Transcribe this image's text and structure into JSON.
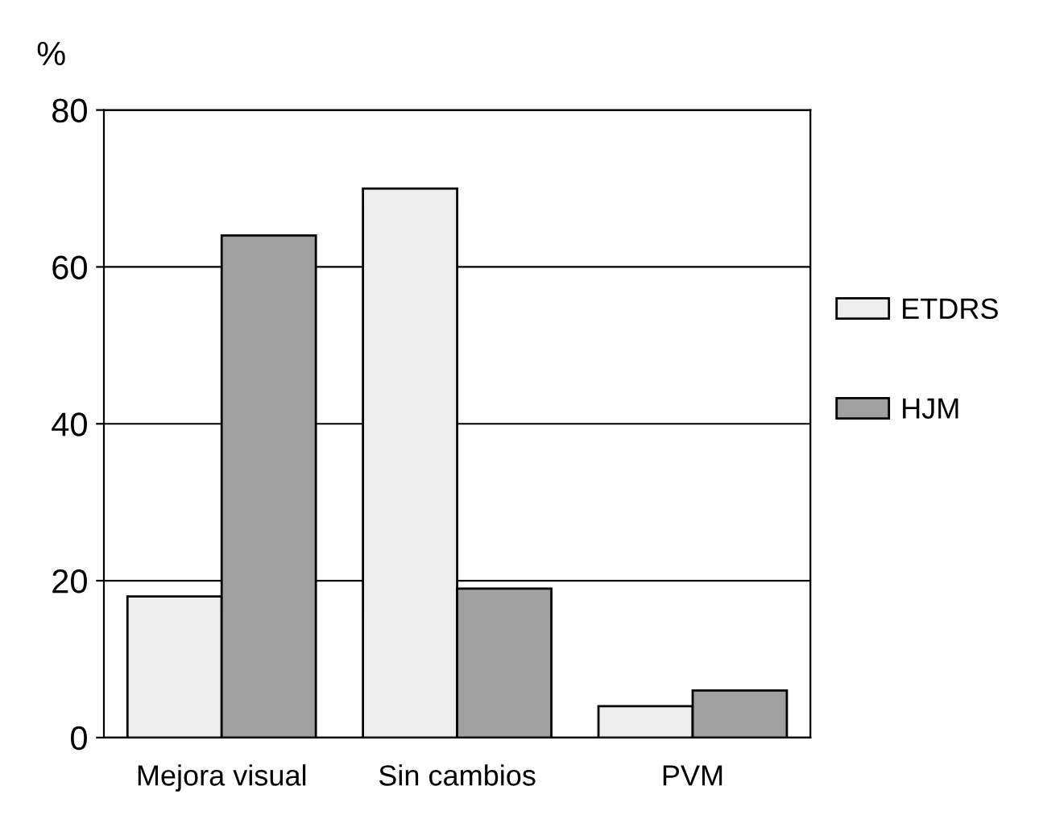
{
  "chart_data": {
    "type": "bar",
    "ylabel": "%",
    "categories": [
      "Mejora visual",
      "Sin cambios",
      "PVM"
    ],
    "series": [
      {
        "name": "ETDRS",
        "color": "#eeeeee",
        "values": [
          18,
          70,
          4
        ]
      },
      {
        "name": "HJM",
        "color": "#a0a0a0",
        "values": [
          64,
          19,
          6
        ]
      }
    ],
    "ylim": [
      0,
      80
    ],
    "yticks": [
      0,
      20,
      40,
      60,
      80
    ],
    "grid": "y",
    "legend": "right"
  }
}
